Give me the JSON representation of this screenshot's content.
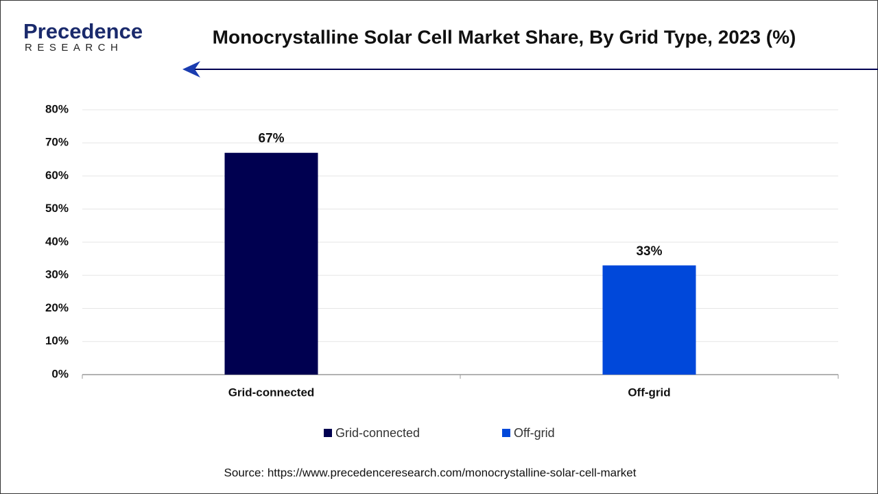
{
  "logo": {
    "name": "Precedence",
    "tagline": "RESEARCH"
  },
  "chart_data": {
    "type": "bar",
    "title": "Monocrystalline Solar Cell Market Share, By Grid Type, 2023 (%)",
    "categories": [
      "Grid-connected",
      "Off-grid"
    ],
    "series": [
      {
        "name": "Grid-connected",
        "color": "#000050",
        "values": [
          67,
          null
        ],
        "value_labels": [
          "67%",
          null
        ]
      },
      {
        "name": "Off-grid",
        "color": "#0048da",
        "values": [
          null,
          33
        ],
        "value_labels": [
          null,
          "33%"
        ]
      }
    ],
    "ylim": [
      0,
      80
    ],
    "yticks": [
      {
        "value": 0,
        "label": "0%"
      },
      {
        "value": 10,
        "label": "10%"
      },
      {
        "value": 20,
        "label": "20%"
      },
      {
        "value": 30,
        "label": "30%"
      },
      {
        "value": 40,
        "label": "40%"
      },
      {
        "value": 50,
        "label": "50%"
      },
      {
        "value": 60,
        "label": "60%"
      },
      {
        "value": 70,
        "label": "70%"
      },
      {
        "value": 80,
        "label": "80%"
      }
    ],
    "grid": true,
    "legend": "bottom",
    "source": "Source: https://www.precedenceresearch.com/monocrystalline-solar-cell-market"
  }
}
